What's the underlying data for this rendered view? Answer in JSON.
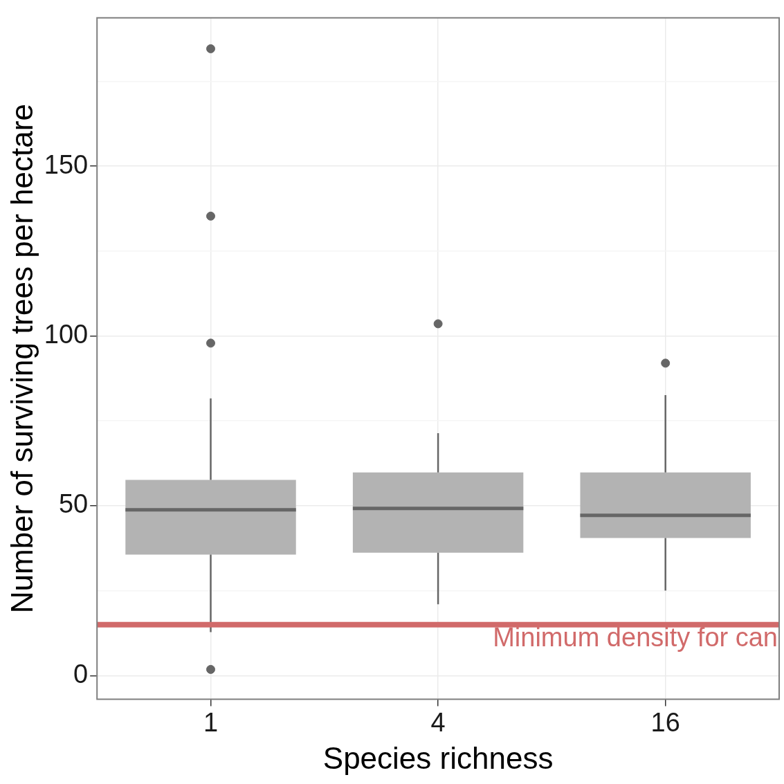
{
  "chart_data": {
    "type": "box",
    "xlabel": "Species richness",
    "ylabel": "Number of surviving trees per hectare",
    "categories": [
      "1",
      "4",
      "16"
    ],
    "color": "#b3b3b3",
    "boxes": [
      {
        "low": 12.8,
        "q1": 35.6,
        "median": 48.8,
        "q3": 57.6,
        "high": 81.6,
        "outliers": [
          184.6,
          135.3,
          97.9,
          1.8
        ]
      },
      {
        "low": 21,
        "q1": 36.2,
        "median": 49.2,
        "q3": 59.8,
        "high": 71.4,
        "outliers": [
          103.6
        ]
      },
      {
        "low": 25,
        "q1": 40.5,
        "median": 47.2,
        "q3": 59.8,
        "high": 82.6,
        "outliers": [
          92
        ]
      }
    ],
    "ylim": [
      -7,
      193.7
    ],
    "yticks": [
      0,
      {
        "value": 25,
        "label": null
      },
      50,
      {
        "value": 75,
        "label": null
      },
      100,
      {
        "value": 125,
        "label": null
      },
      150,
      {
        "value": 175,
        "label": null
      }
    ],
    "grid": true,
    "ref_lines": [
      {
        "axis": "y",
        "value": 15,
        "label": "Minimum density for can",
        "color": "#d16a6a"
      }
    ]
  }
}
